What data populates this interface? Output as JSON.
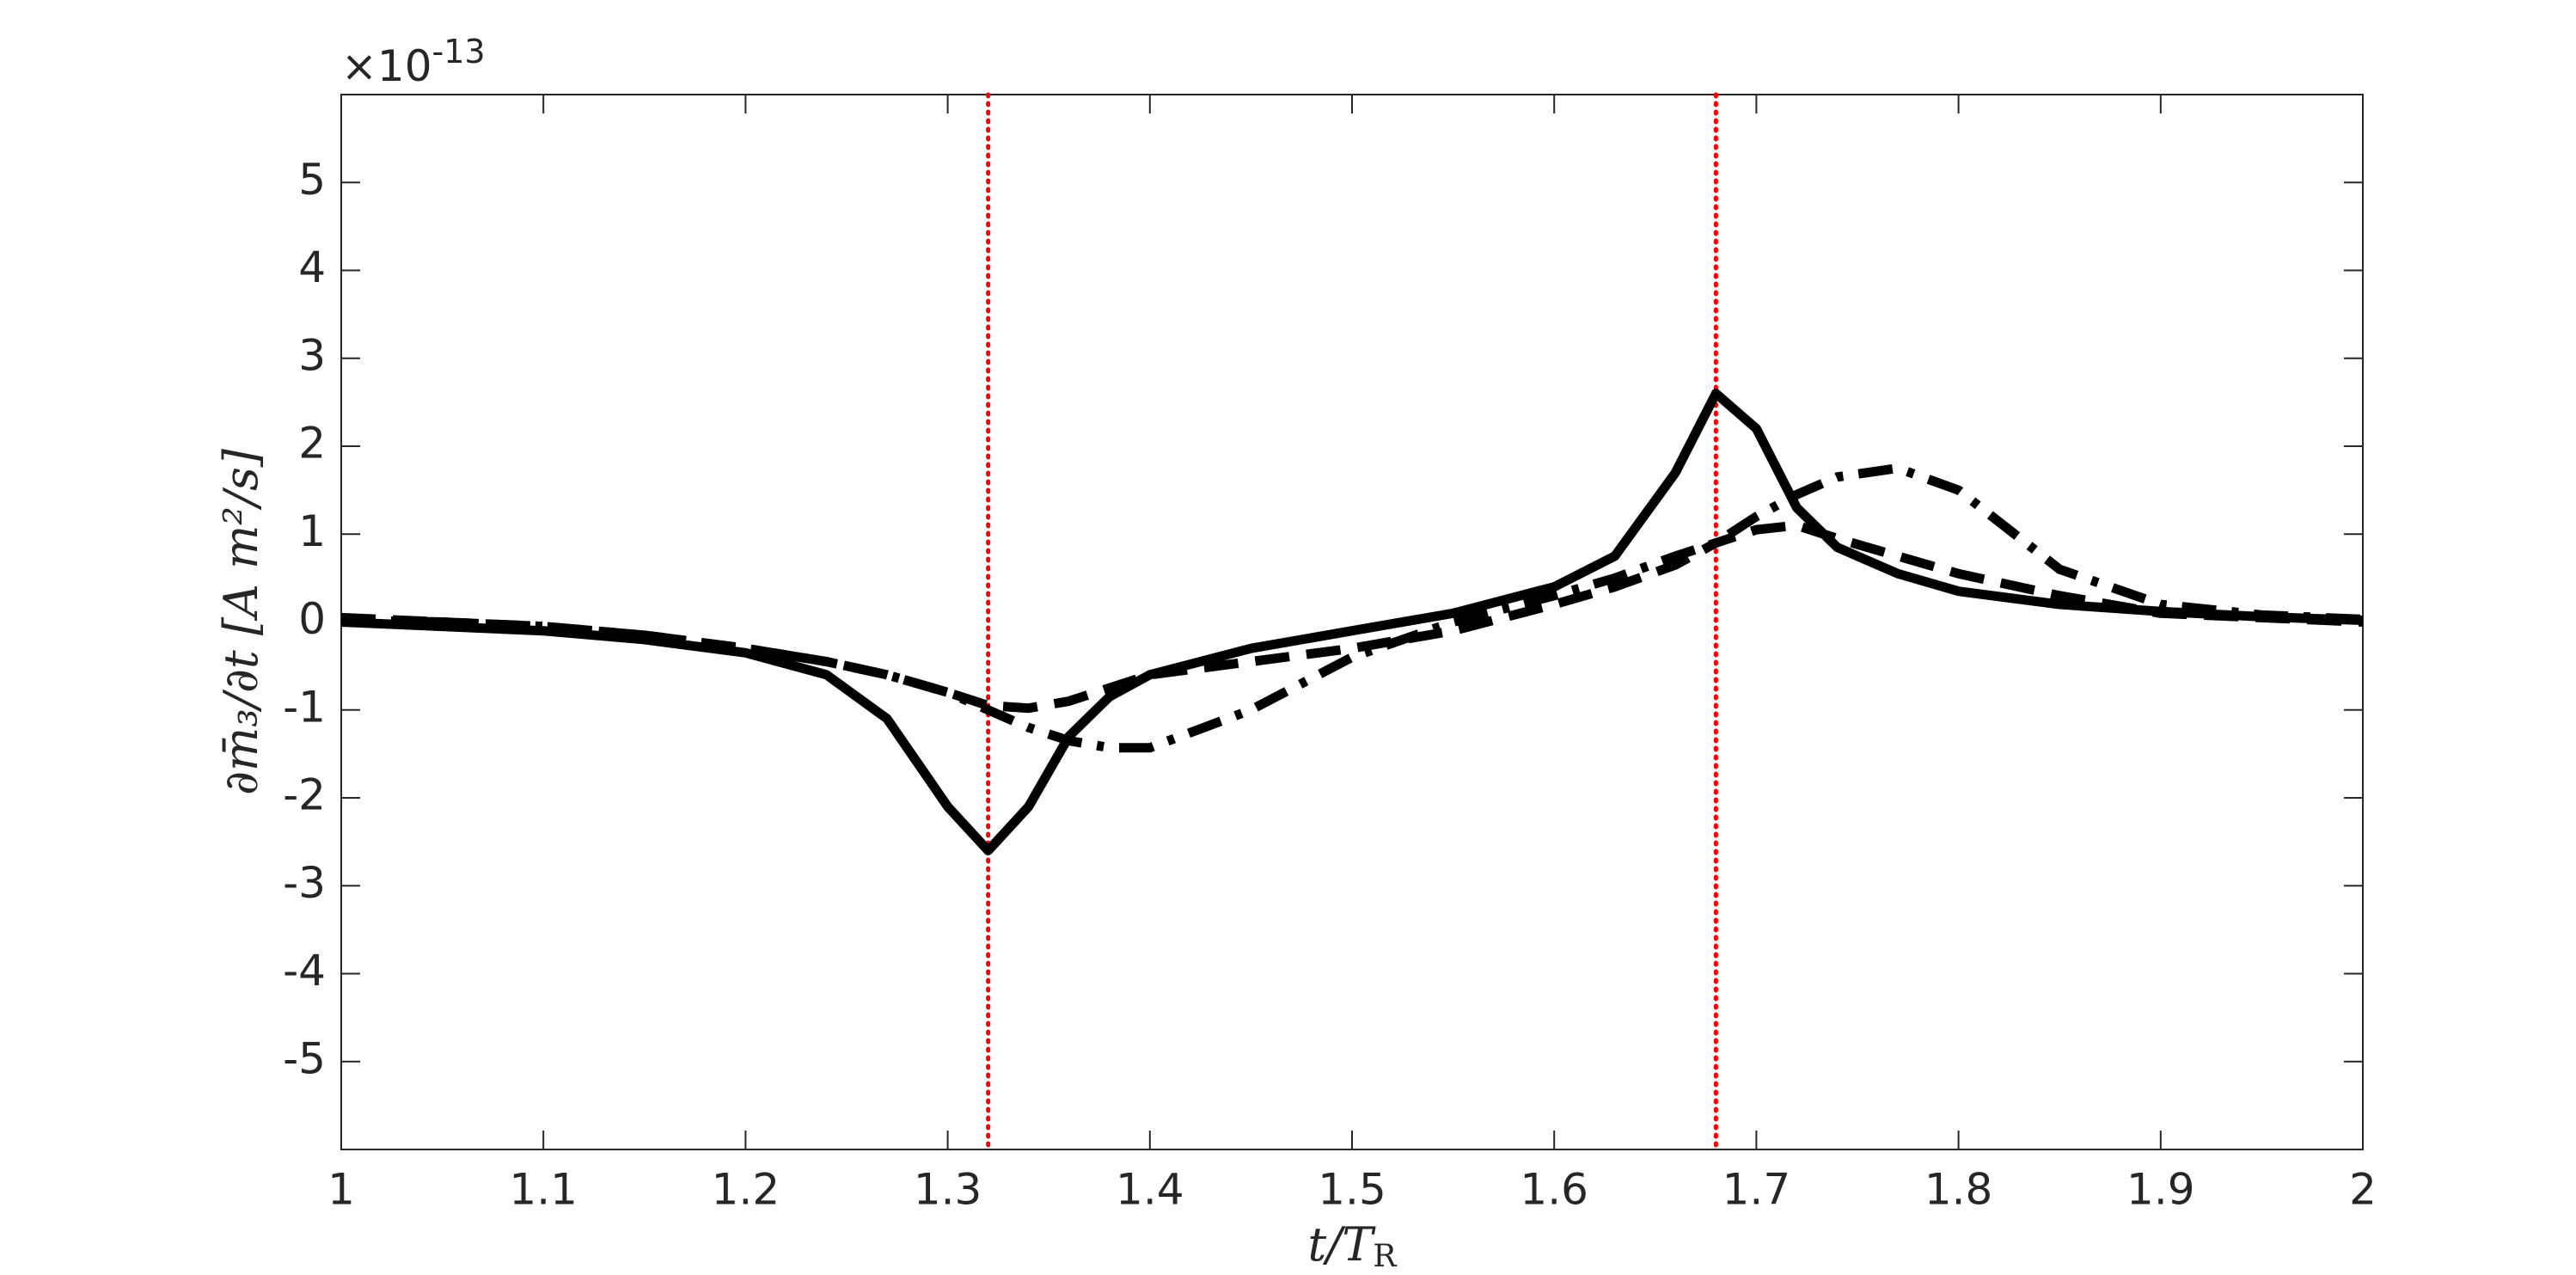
{
  "chart_data": {
    "type": "line",
    "y_multiplier": "×10",
    "y_exponent": "-13",
    "ylabel": "∂m̄₃/∂t [A m²/s]",
    "xlabel": "t/T",
    "xlabel_sub": "R",
    "x": [
      1.0,
      1.05,
      1.1,
      1.15,
      1.2,
      1.24,
      1.27,
      1.3,
      1.32,
      1.34,
      1.36,
      1.38,
      1.4,
      1.45,
      1.5,
      1.55,
      1.6,
      1.63,
      1.66,
      1.68,
      1.7,
      1.72,
      1.74,
      1.77,
      1.8,
      1.85,
      1.9,
      1.95,
      2.0
    ],
    "series": [
      {
        "color": "#000000",
        "dash": "solid",
        "values": [
          0,
          -0.05,
          -0.1,
          -0.2,
          -0.35,
          -0.6,
          -1.1,
          -2.1,
          -2.6,
          -2.1,
          -1.3,
          -0.85,
          -0.6,
          -0.3,
          -0.1,
          0.1,
          0.4,
          0.75,
          1.7,
          2.6,
          2.2,
          1.3,
          0.85,
          0.55,
          0.35,
          0.2,
          0.12,
          0.06,
          0.02
        ]
      },
      {
        "color": "#000000",
        "dash": "dashed",
        "values": [
          0.05,
          0,
          -0.05,
          -0.15,
          -0.3,
          -0.45,
          -0.6,
          -0.8,
          -0.95,
          -0.98,
          -0.9,
          -0.75,
          -0.6,
          -0.45,
          -0.3,
          -0.1,
          0.2,
          0.4,
          0.65,
          0.9,
          1.05,
          1.1,
          0.95,
          0.75,
          0.55,
          0.3,
          0.1,
          0.05,
          0
        ]
      },
      {
        "color": "#000000",
        "dash": "dashdot",
        "values": [
          0.02,
          0,
          -0.05,
          -0.15,
          -0.3,
          -0.45,
          -0.6,
          -0.8,
          -1.0,
          -1.2,
          -1.35,
          -1.43,
          -1.43,
          -1.0,
          -0.4,
          0,
          0.3,
          0.5,
          0.75,
          0.9,
          1.2,
          1.45,
          1.65,
          1.75,
          1.5,
          0.6,
          0.2,
          0.08,
          0.03
        ]
      }
    ],
    "vlines": [
      1.32,
      1.68
    ],
    "vline_color": "#ff0000",
    "xlim": [
      1,
      2
    ],
    "xticks": [
      1,
      1.1,
      1.2,
      1.3,
      1.4,
      1.5,
      1.6,
      1.7,
      1.8,
      1.9,
      2
    ],
    "ylim": [
      -6,
      6
    ],
    "yticks": [
      -5,
      -4,
      -3,
      -2,
      -1,
      0,
      1,
      2,
      3,
      4,
      5
    ],
    "grid": false
  }
}
